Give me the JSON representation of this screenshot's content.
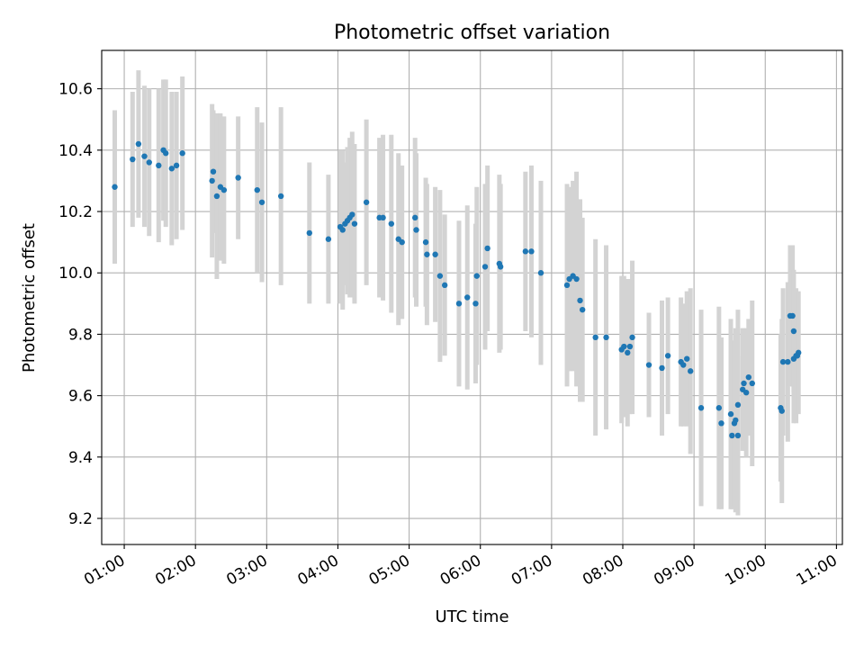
{
  "chart_data": {
    "type": "scatter",
    "title": "Photometric offset variation",
    "xlabel": "UTC time",
    "ylabel": "Photometric offset",
    "xlim": [
      "00:41",
      "11:05"
    ],
    "ylim": [
      9.115,
      10.725
    ],
    "grid": true,
    "x_ticks": [
      "01:00",
      "02:00",
      "03:00",
      "04:00",
      "05:00",
      "06:00",
      "07:00",
      "08:00",
      "09:00",
      "10:00",
      "11:00"
    ],
    "y_ticks": [
      "9.2",
      "9.4",
      "9.6",
      "9.8",
      "10.0",
      "10.2",
      "10.4",
      "10.6"
    ],
    "marker_color": "#1f77b4",
    "errorbar_color": "#d3d3d3",
    "series": [
      {
        "x": [
          "00:52",
          "01:07",
          "01:12",
          "01:17",
          "01:21",
          "01:29",
          "01:33",
          "01:35",
          "01:40",
          "01:44",
          "01:49",
          "02:14",
          "02:15",
          "02:18",
          "02:21",
          "02:24",
          "02:36",
          "02:52",
          "02:56",
          "03:12",
          "03:36",
          "03:52",
          "04:02",
          "04:04",
          "04:06",
          "04:08",
          "04:10",
          "04:12",
          "04:14",
          "04:24",
          "04:35",
          "04:38",
          "04:45",
          "04:51",
          "04:54",
          "05:05",
          "05:06",
          "05:14",
          "05:15",
          "05:22",
          "05:26",
          "05:30",
          "05:42",
          "05:49",
          "05:56",
          "05:57",
          "06:04",
          "06:06",
          "06:16",
          "06:17",
          "06:38",
          "06:43",
          "06:51",
          "07:13",
          "07:15",
          "07:18",
          "07:21",
          "07:24",
          "07:26",
          "07:37",
          "07:46",
          "07:59",
          "08:01",
          "08:04",
          "08:06",
          "08:08",
          "08:22",
          "08:33",
          "08:38",
          "08:49",
          "08:51",
          "08:54",
          "08:57",
          "09:06",
          "09:21",
          "09:23",
          "09:31",
          "09:32",
          "09:34",
          "09:35",
          "09:37",
          "09:37",
          "09:41",
          "09:42",
          "09:44",
          "09:46",
          "09:49",
          "10:13",
          "10:14",
          "10:15",
          "10:19",
          "10:21",
          "10:23",
          "10:24",
          "10:24",
          "10:26",
          "10:27",
          "10:28"
        ],
        "y": [
          10.28,
          10.37,
          10.42,
          10.38,
          10.36,
          10.35,
          10.4,
          10.39,
          10.34,
          10.35,
          10.39,
          10.3,
          10.33,
          10.25,
          10.28,
          10.27,
          10.31,
          10.27,
          10.23,
          10.25,
          10.13,
          10.11,
          10.15,
          10.14,
          10.16,
          10.17,
          10.18,
          10.19,
          10.16,
          10.23,
          10.18,
          10.18,
          10.16,
          10.11,
          10.1,
          10.18,
          10.14,
          10.1,
          10.06,
          10.06,
          9.99,
          9.96,
          9.9,
          9.92,
          9.9,
          9.99,
          10.02,
          10.08,
          10.03,
          10.02,
          10.07,
          10.07,
          10.0,
          9.96,
          9.98,
          9.99,
          9.98,
          9.91,
          9.88,
          9.79,
          9.79,
          9.75,
          9.76,
          9.74,
          9.76,
          9.79,
          9.7,
          9.69,
          9.73,
          9.71,
          9.7,
          9.72,
          9.68,
          9.56,
          9.56,
          9.51,
          9.54,
          9.47,
          9.51,
          9.52,
          9.47,
          9.57,
          9.62,
          9.64,
          9.61,
          9.66,
          9.64,
          9.56,
          9.55,
          9.71,
          9.71,
          9.86,
          9.86,
          9.81,
          9.72,
          9.73,
          9.73,
          9.74
        ],
        "yerr": [
          0.25,
          0.22,
          0.24,
          0.23,
          0.24,
          0.25,
          0.23,
          0.24,
          0.25,
          0.24,
          0.25,
          0.25,
          0.2,
          0.27,
          0.24,
          0.24,
          0.2,
          0.27,
          0.26,
          0.29,
          0.23,
          0.21,
          0.25,
          0.26,
          0.2,
          0.24,
          0.26,
          0.27,
          0.26,
          0.27,
          0.26,
          0.27,
          0.29,
          0.28,
          0.25,
          0.26,
          0.25,
          0.21,
          0.23,
          0.22,
          0.28,
          0.23,
          0.27,
          0.3,
          0.26,
          0.29,
          0.27,
          0.27,
          0.29,
          0.27,
          0.26,
          0.28,
          0.3,
          0.33,
          0.3,
          0.31,
          0.35,
          0.33,
          0.3,
          0.32,
          0.3,
          0.24,
          0.23,
          0.24,
          0.22,
          0.25,
          0.17,
          0.22,
          0.19,
          0.21,
          0.2,
          0.22,
          0.27,
          0.32,
          0.33,
          0.28,
          0.31,
          0.24,
          0.27,
          0.3,
          0.26,
          0.31,
          0.2,
          0.17,
          0.21,
          0.19,
          0.27,
          0.24,
          0.3,
          0.24,
          0.26,
          0.23,
          0.23,
          0.2,
          0.21,
          0.22,
          0.16,
          0.2
        ]
      }
    ]
  }
}
